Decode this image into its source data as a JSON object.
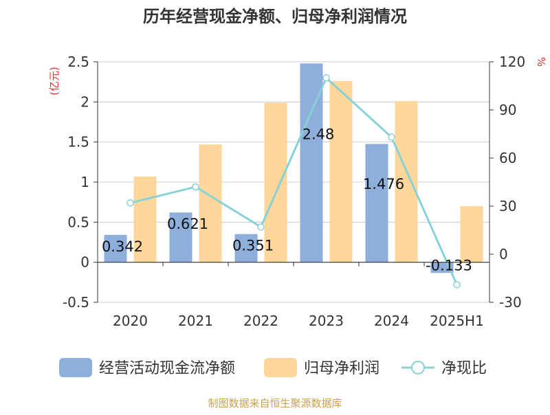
{
  "colors": {
    "cash_flow": "#8EAEDB",
    "net_profit": "#FFD79A",
    "ratio": "#86D2D6",
    "left_unit": "#E03030",
    "right_unit": "#E03030",
    "text": "#333333",
    "axis": "#333333",
    "grid": "#CCCCCC",
    "source": "#C8A24A"
  },
  "chart_data": {
    "type": "bar",
    "title": "历年经营现金净额、归母净利润情况",
    "source": "制图数据来自恒生聚源数据库",
    "left_axis": {
      "label": "(亿元)",
      "ticks": [
        "-0.5",
        "0",
        "0.5",
        "1",
        "1.5",
        "2",
        "2.5"
      ],
      "min": -0.5,
      "max": 2.5
    },
    "right_axis": {
      "label": "%",
      "ticks": [
        "-30",
        "0",
        "30",
        "60",
        "90",
        "120"
      ],
      "min": -30,
      "max": 120
    },
    "grid": true,
    "legend_position": "bottom",
    "categories": [
      "2020",
      "2021",
      "2022",
      "2023",
      "2024",
      "2025H1"
    ],
    "series": [
      {
        "name": "经营活动现金流净额",
        "type": "bar",
        "axis": "left",
        "values": [
          0.342,
          0.621,
          0.351,
          2.48,
          1.476,
          -0.133
        ],
        "labels": [
          "0.342",
          "0.621",
          "0.351",
          "2.48",
          "1.476",
          "-0.133"
        ]
      },
      {
        "name": "归母净利润",
        "type": "bar",
        "axis": "left",
        "values": [
          1.07,
          1.47,
          1.99,
          2.26,
          2.01,
          0.7
        ]
      },
      {
        "name": "净现比",
        "type": "line",
        "axis": "right",
        "values": [
          32,
          42,
          17,
          110,
          73,
          -19
        ]
      }
    ]
  }
}
